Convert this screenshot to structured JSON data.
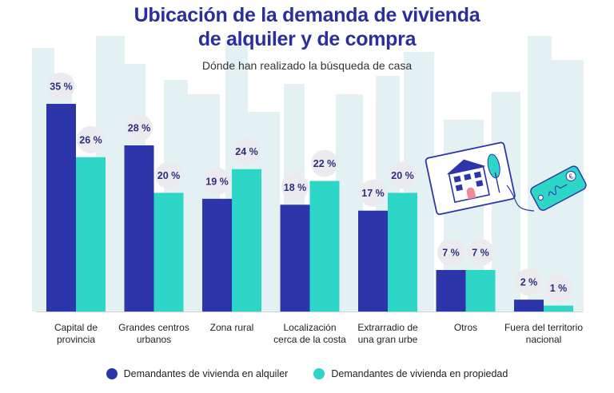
{
  "title_line1": "Ubicación de la demanda de vivienda",
  "title_line2": "de alquiler y de compra",
  "subtitle": "Dónde han realizado la búsqueda de casa",
  "colors": {
    "rent": "#2c36aa",
    "own": "#2dd6c6",
    "title": "#2b2f9b",
    "skyline": "#e3f1f2",
    "label_bubble": "#ebebef"
  },
  "legend": {
    "rent": "Demandantes de vivienda en alquiler",
    "own": "Demandantes de vivienda en propiedad"
  },
  "illustration": {
    "icon": "house-listing-and-euro-tag-icon"
  },
  "chart_data": {
    "type": "bar",
    "categories": [
      [
        "Capital de",
        "provincia"
      ],
      [
        "Grandes centros",
        "urbanos"
      ],
      [
        "Zona rural"
      ],
      [
        "Localización",
        "cerca de la costa"
      ],
      [
        "Extrarradio de",
        "una gran urbe"
      ],
      [
        "Otros"
      ],
      [
        "Fuera del territorio",
        "nacional"
      ]
    ],
    "series": [
      {
        "name": "Demandantes de vivienda en alquiler",
        "values": [
          35,
          28,
          19,
          18,
          17,
          7,
          2
        ],
        "labels": [
          "35 %",
          "28 %",
          "19 %",
          "18 %",
          "17 %",
          "7 %",
          "2 %"
        ]
      },
      {
        "name": "Demandantes de vivienda en propiedad",
        "values": [
          26,
          20,
          24,
          22,
          20,
          7,
          1
        ],
        "labels": [
          "26 %",
          "20 %",
          "24 %",
          "22 %",
          "20 %",
          "7 %",
          "1 %"
        ]
      }
    ],
    "ylim": [
      0,
      35
    ],
    "grid": false,
    "legend_position": "bottom"
  }
}
